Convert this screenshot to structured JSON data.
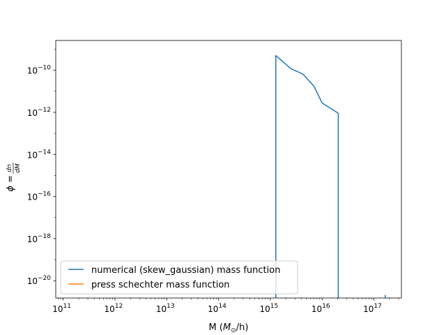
{
  "chart_data": {
    "type": "line",
    "title": "",
    "xlabel": "M (M⊙/h)",
    "xlabel_parts": {
      "prefix": "M (",
      "symbol": "M",
      "subscript": "⊙",
      "suffix": "/h)"
    },
    "ylabel": "ϕ = dn/dM",
    "ylabel_parts": {
      "lhs": "ϕ = ",
      "num": "dn",
      "den": "dM"
    },
    "xscale": "log",
    "yscale": "log",
    "xlim": [
      72000000000.0,
      3.4e+17
    ],
    "ylim": [
      1.5e-21,
      2.6e-09
    ],
    "grid": false,
    "legend_position": "lower-left",
    "xticks": [
      {
        "base": "10",
        "exp": "11",
        "value": 100000000000.0
      },
      {
        "base": "10",
        "exp": "12",
        "value": 1000000000000.0
      },
      {
        "base": "10",
        "exp": "13",
        "value": 10000000000000.0
      },
      {
        "base": "10",
        "exp": "14",
        "value": 100000000000000.0
      },
      {
        "base": "10",
        "exp": "15",
        "value": 1000000000000000.0
      },
      {
        "base": "10",
        "exp": "16",
        "value": 1e+16
      },
      {
        "base": "10",
        "exp": "17",
        "value": 1e+17
      }
    ],
    "yticks": [
      {
        "base": "10",
        "exp": "−20",
        "value": 1e-20
      },
      {
        "base": "10",
        "exp": "−18",
        "value": 1e-18
      },
      {
        "base": "10",
        "exp": "−16",
        "value": 1e-16
      },
      {
        "base": "10",
        "exp": "−14",
        "value": 1e-14
      },
      {
        "base": "10",
        "exp": "−12",
        "value": 1e-12
      },
      {
        "base": "10",
        "exp": "−10",
        "value": 1e-10
      }
    ],
    "series": [
      {
        "name": "numerical (skew_gaussian) mass function",
        "color": "#1f77b4",
        "segments": [
          [
            [
              1280000000000000.0,
              1e-30
            ],
            [
              1280000000000000.0,
              5e-10
            ],
            [
              2500000000000000.0,
              1.2e-10
            ],
            [
              4300000000000000.0,
              6.5e-11
            ],
            [
              7000000000000000.0,
              1.7e-11
            ],
            [
              1e+16,
              2.8e-12
            ],
            [
              2.05e+16,
              9e-13
            ],
            [
              2.05e+16,
              1e-30
            ]
          ],
          [
            [
              8.4e+16,
              1e-30
            ],
            [
              8.4e+16,
              1.3e-21
            ]
          ],
          [
            [
              1.65e+17,
              1e-30
            ],
            [
              1.65e+17,
              2.1e-21
            ]
          ]
        ]
      },
      {
        "name": "press schechter mass function",
        "color": "#ff7f0e",
        "segments": []
      }
    ]
  }
}
